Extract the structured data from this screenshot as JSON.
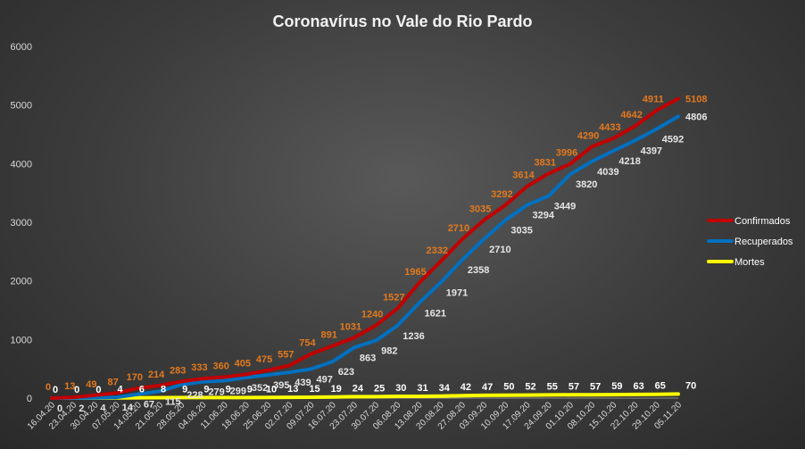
{
  "chart_data": {
    "type": "line",
    "title": "Coronavírus  no Vale do Rio Pardo",
    "xlabel": "",
    "ylabel": "",
    "ylim": [
      0,
      6000
    ],
    "yticks": [
      0,
      1000,
      2000,
      3000,
      4000,
      5000,
      6000
    ],
    "grid": false,
    "legend_position": "right",
    "categories": [
      "16.04.20",
      "23.04.20",
      "30.04.20",
      "07.05.20",
      "14.05.20",
      "21.05.20",
      "28.05.20",
      "04.06.20",
      "11.06.20",
      "18.06.20",
      "25.06.20",
      "02.07.20",
      "09.07.20",
      "16.07.20",
      "23.07.20",
      "30.07.20",
      "06.08.20",
      "13.08.20",
      "20.08.20",
      "27.08.20",
      "03.09.20",
      "10.09.20",
      "17.09.20",
      "24.09.20",
      "01.10.20",
      "08.10.20",
      "15.10.20",
      "22.10.20",
      "29.10.20",
      "05.11.20"
    ],
    "series": [
      {
        "name": "Confirmados",
        "color": "#c00000",
        "label_color": "#e3791e",
        "values": [
          0,
          13,
          49,
          87,
          170,
          214,
          283,
          333,
          360,
          405,
          475,
          557,
          754,
          891,
          1031,
          1240,
          1527,
          1965,
          2332,
          2710,
          3035,
          3292,
          3614,
          3831,
          3996,
          4290,
          4433,
          4642,
          4911,
          5108
        ]
      },
      {
        "name": "Recuperados",
        "color": "#0070c0",
        "label_color": "#e6e6e6",
        "values": [
          0,
          2,
          4,
          14,
          67,
          115,
          228,
          279,
          299,
          352,
          395,
          439,
          497,
          623,
          863,
          982,
          1236,
          1621,
          1971,
          2358,
          2710,
          3035,
          3294,
          3449,
          3820,
          4039,
          4218,
          4397,
          4592,
          4806
        ]
      },
      {
        "name": "Mortes",
        "color": "#ffff00",
        "label_color": "#ffffff",
        "values": [
          0,
          0,
          0,
          4,
          6,
          8,
          9,
          9,
          9,
          9,
          10,
          13,
          15,
          19,
          24,
          25,
          30,
          31,
          34,
          42,
          47,
          50,
          52,
          55,
          57,
          57,
          59,
          63,
          65,
          70
        ]
      }
    ]
  }
}
